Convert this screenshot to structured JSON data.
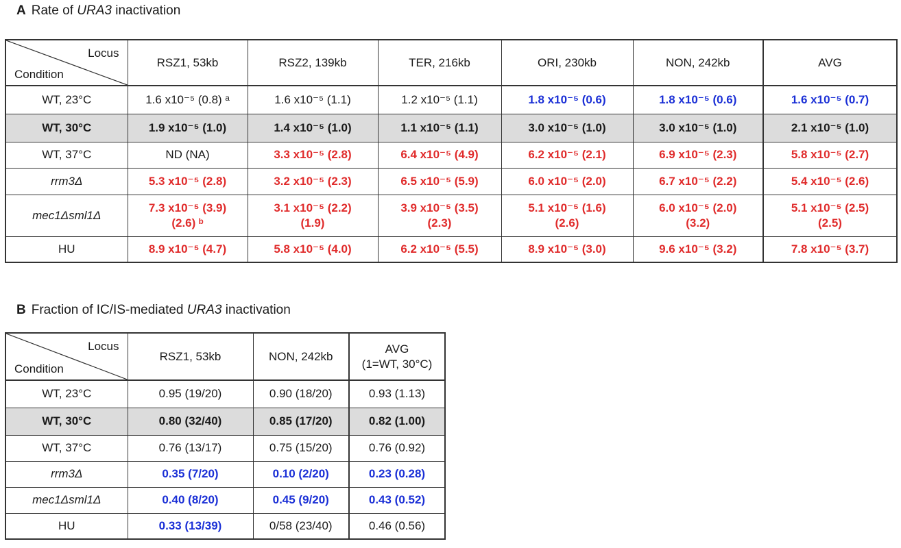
{
  "panelA": {
    "letter": "A",
    "title_pre": "Rate of ",
    "title_italic": "URA3",
    "title_post": " inactivation",
    "corner_top": "Locus",
    "corner_bottom": "Condition",
    "columns": [
      "RSZ1, 53kb",
      "RSZ2, 139kb",
      "TER, 216kb",
      "ORI, 230kb",
      "NON, 242kb",
      "AVG"
    ],
    "rows": [
      {
        "condition": "WT, 23°C",
        "cells": [
          "1.6 x10⁻⁵ (0.8) ᵃ",
          "1.6 x10⁻⁵ (1.1)",
          "1.2 x10⁻⁵ (1.1)",
          "1.8 x10⁻⁵ (0.6)",
          "1.8 x10⁻⁵ (0.6)",
          "1.6 x10⁻⁵ (0.7)"
        ]
      },
      {
        "condition": "WT, 30°C",
        "cells": [
          "1.9 x10⁻⁵ (1.0)",
          "1.4 x10⁻⁵ (1.0)",
          "1.1 x10⁻⁵ (1.1)",
          "3.0 x10⁻⁵ (1.0)",
          "3.0 x10⁻⁵ (1.0)",
          "2.1 x10⁻⁵ (1.0)"
        ]
      },
      {
        "condition": "WT, 37°C",
        "cells": [
          "ND (NA)",
          "3.3 x10⁻⁵ (2.8)",
          "6.4 x10⁻⁵ (4.9)",
          "6.2 x10⁻⁵ (2.1)",
          "6.9 x10⁻⁵ (2.3)",
          "5.8 x10⁻⁵ (2.7)"
        ]
      },
      {
        "condition": "rrm3Δ",
        "cells": [
          "5.3 x10⁻⁵ (2.8)",
          "3.2 x10⁻⁵ (2.3)",
          "6.5 x10⁻⁵ (5.9)",
          "6.0 x10⁻⁵ (2.0)",
          "6.7 x10⁻⁵ (2.2)",
          "5.4 x10⁻⁵ (2.6)"
        ]
      },
      {
        "condition": "mec1Δsml1Δ",
        "cells": [
          "7.3 x10⁻⁵ (3.9)",
          "3.1 x10⁻⁵ (2.2)",
          "3.9 x10⁻⁵ (3.5)",
          "5.1 x10⁻⁵ (1.6)",
          "6.0 x10⁻⁵ (2.0)",
          "5.1 x10⁻⁵ (2.5)"
        ],
        "cells2": [
          "(2.6) ᵇ",
          "(1.9)",
          "(2.3)",
          "(2.6)",
          "(3.2)",
          "(2.5)"
        ]
      },
      {
        "condition": "HU",
        "cells": [
          "8.9 x10⁻⁵ (4.7)",
          "5.8 x10⁻⁵ (4.0)",
          "6.2 x10⁻⁵ (5.5)",
          "8.9 x10⁻⁵ (3.0)",
          "9.6 x10⁻⁵ (3.2)",
          "7.8 x10⁻⁵ (3.7)"
        ]
      }
    ],
    "colors": {
      "red": "#e02b2b",
      "blue": "#1a2fd6",
      "highlight_row_bg": "#dcdcdc"
    }
  },
  "panelB": {
    "letter": "B",
    "title_pre": "Fraction of IC/IS-mediated ",
    "title_italic": "URA3",
    "title_post": " inactivation",
    "corner_top": "Locus",
    "corner_bottom": "Condition",
    "columns": [
      "RSZ1, 53kb",
      "NON, 242kb"
    ],
    "avg_header_1": "AVG",
    "avg_header_2": "(1=WT, 30°C)",
    "rows": [
      {
        "condition": "WT, 23°C",
        "cells": [
          "0.95 (19/20)",
          "0.90 (18/20)",
          "0.93 (1.13)"
        ]
      },
      {
        "condition": "WT, 30°C",
        "cells": [
          "0.80 (32/40)",
          "0.85 (17/20)",
          "0.82 (1.00)"
        ]
      },
      {
        "condition": "WT, 37°C",
        "cells": [
          "0.76 (13/17)",
          "0.75 (15/20)",
          "0.76 (0.92)"
        ]
      },
      {
        "condition": "rrm3Δ",
        "cells": [
          "0.35 (7/20)",
          "0.10 (2/20)",
          "0.23 (0.28)"
        ]
      },
      {
        "condition": "mec1Δsml1Δ",
        "cells": [
          "0.40 (8/20)",
          "0.45 (9/20)",
          "0.43 (0.52)"
        ]
      },
      {
        "condition": "HU",
        "cells": [
          "0.33 (13/39)",
          "0/58 (23/40)",
          "0.46 (0.56)"
        ]
      }
    ]
  }
}
